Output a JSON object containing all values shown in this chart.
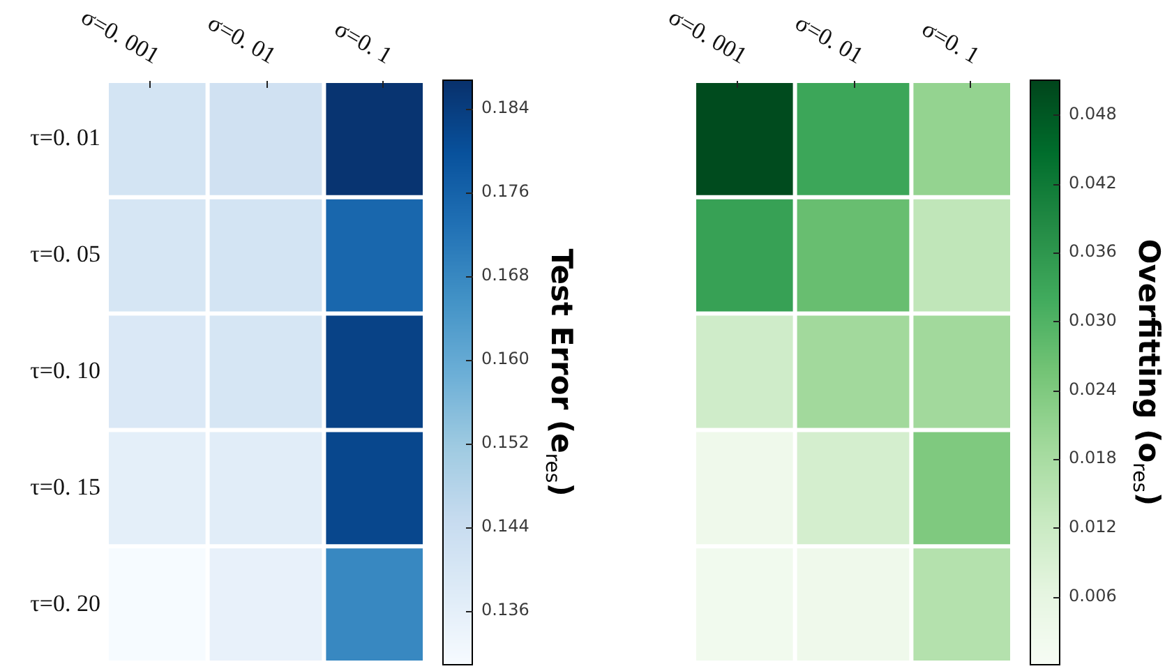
{
  "chart_data": [
    {
      "type": "heatmap",
      "categories": [
        "σ=0. 001",
        "σ=0. 01",
        "σ=0. 1"
      ],
      "y_categories": [
        "τ=0. 01",
        "τ=0. 05",
        "τ=0. 10",
        "τ=0. 15",
        "τ=0. 20"
      ],
      "cells": [
        [
          0.141,
          0.142,
          0.186
        ],
        [
          0.14,
          0.141,
          0.175
        ],
        [
          0.139,
          0.14,
          0.183
        ],
        [
          0.136,
          0.137,
          0.182
        ],
        [
          0.131,
          0.135,
          0.168
        ]
      ],
      "clim": [
        0.1308,
        0.1868
      ],
      "cticks": [
        0.136,
        0.144,
        0.152,
        {
          "value": 0.16,
          "label": "0.160"
        },
        0.168,
        0.176,
        0.184
      ],
      "clabel": "Test Error (e$_{res}$)",
      "colors": [
        "#f7fbff",
        "#deebf7",
        "#c6dbef",
        "#9ecae1",
        "#6baed6",
        "#4292c6",
        "#2171b5",
        "#08519c",
        "#08306b"
      ]
    },
    {
      "type": "heatmap",
      "categories": [
        "σ=0. 001",
        "σ=0. 01",
        "σ=0. 1"
      ],
      "y_categories": [
        null,
        null,
        null,
        null,
        null
      ],
      "cells": [
        [
          0.05,
          0.033,
          0.021
        ],
        [
          0.034,
          0.027,
          0.014
        ],
        [
          0.011,
          0.019,
          0.019
        ],
        [
          0.003,
          0.01,
          0.024
        ],
        [
          0.002,
          0.003,
          0.016
        ]
      ],
      "clim": [
        0.0,
        0.0511
      ],
      "cticks": [
        {
          "value": 0.006,
          "label": "0.006"
        },
        {
          "value": 0.012,
          "label": "0.012"
        },
        {
          "value": 0.018,
          "label": "0.018"
        },
        {
          "value": 0.024,
          "label": "0.024"
        },
        {
          "value": 0.03,
          "label": "0.030"
        },
        {
          "value": 0.036,
          "label": "0.036"
        },
        {
          "value": 0.042,
          "label": "0.042"
        },
        {
          "value": 0.048,
          "label": "0.048"
        }
      ],
      "clabel": "Overfitting (o$_{res}$)",
      "colors": [
        "#f7fcf5",
        "#e5f5e0",
        "#c7e9c0",
        "#a1d99b",
        "#74c476",
        "#41ab5d",
        "#238b45",
        "#006d2c",
        "#00441b"
      ]
    }
  ]
}
